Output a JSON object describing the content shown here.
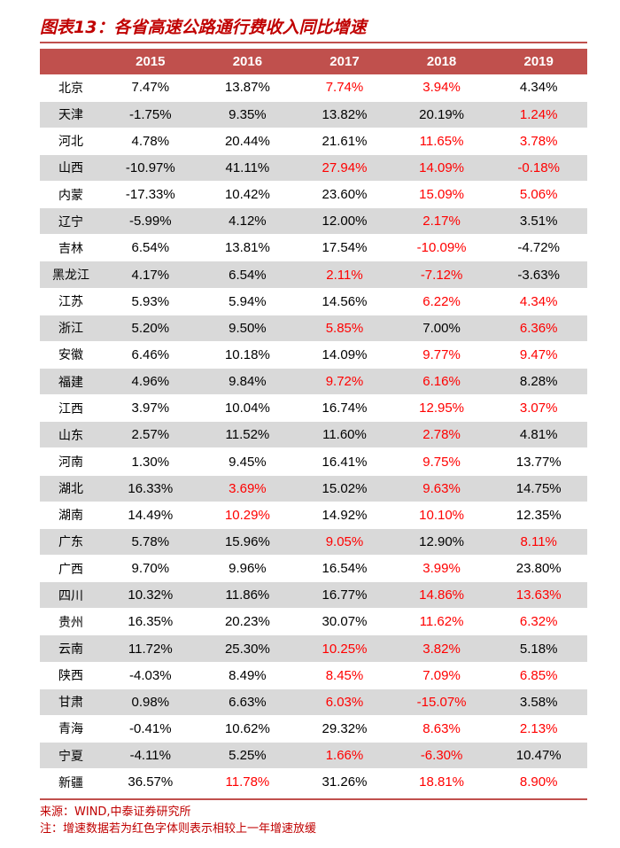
{
  "title": "图表13：各省高速公路通行费收入同比增速",
  "header": [
    "",
    "2015",
    "2016",
    "2017",
    "2018",
    "2019"
  ],
  "rows": [
    {
      "province": "北京",
      "values": [
        "7.47%",
        "13.87%",
        "7.74%",
        "3.94%",
        "4.34%"
      ],
      "red": [
        false,
        false,
        true,
        true,
        false
      ]
    },
    {
      "province": "天津",
      "values": [
        "-1.75%",
        "9.35%",
        "13.82%",
        "20.19%",
        "1.24%"
      ],
      "red": [
        false,
        false,
        false,
        false,
        true
      ]
    },
    {
      "province": "河北",
      "values": [
        "4.78%",
        "20.44%",
        "21.61%",
        "11.65%",
        "3.78%"
      ],
      "red": [
        false,
        false,
        false,
        true,
        true
      ]
    },
    {
      "province": "山西",
      "values": [
        "-10.97%",
        "41.11%",
        "27.94%",
        "14.09%",
        "-0.18%"
      ],
      "red": [
        false,
        false,
        true,
        true,
        true
      ]
    },
    {
      "province": "内蒙",
      "values": [
        "-17.33%",
        "10.42%",
        "23.60%",
        "15.09%",
        "5.06%"
      ],
      "red": [
        false,
        false,
        false,
        true,
        true
      ]
    },
    {
      "province": "辽宁",
      "values": [
        "-5.99%",
        "4.12%",
        "12.00%",
        "2.17%",
        "3.51%"
      ],
      "red": [
        false,
        false,
        false,
        true,
        false
      ]
    },
    {
      "province": "吉林",
      "values": [
        "6.54%",
        "13.81%",
        "17.54%",
        "-10.09%",
        "-4.72%"
      ],
      "red": [
        false,
        false,
        false,
        true,
        false
      ]
    },
    {
      "province": "黑龙江",
      "values": [
        "4.17%",
        "6.54%",
        "2.11%",
        "-7.12%",
        "-3.63%"
      ],
      "red": [
        false,
        false,
        true,
        true,
        false
      ]
    },
    {
      "province": "江苏",
      "values": [
        "5.93%",
        "5.94%",
        "14.56%",
        "6.22%",
        "4.34%"
      ],
      "red": [
        false,
        false,
        false,
        true,
        true
      ]
    },
    {
      "province": "浙江",
      "values": [
        "5.20%",
        "9.50%",
        "5.85%",
        "7.00%",
        "6.36%"
      ],
      "red": [
        false,
        false,
        true,
        false,
        true
      ]
    },
    {
      "province": "安徽",
      "values": [
        "6.46%",
        "10.18%",
        "14.09%",
        "9.77%",
        "9.47%"
      ],
      "red": [
        false,
        false,
        false,
        true,
        true
      ]
    },
    {
      "province": "福建",
      "values": [
        "4.96%",
        "9.84%",
        "9.72%",
        "6.16%",
        "8.28%"
      ],
      "red": [
        false,
        false,
        true,
        true,
        false
      ]
    },
    {
      "province": "江西",
      "values": [
        "3.97%",
        "10.04%",
        "16.74%",
        "12.95%",
        "3.07%"
      ],
      "red": [
        false,
        false,
        false,
        true,
        true
      ]
    },
    {
      "province": "山东",
      "values": [
        "2.57%",
        "11.52%",
        "11.60%",
        "2.78%",
        "4.81%"
      ],
      "red": [
        false,
        false,
        false,
        true,
        false
      ]
    },
    {
      "province": "河南",
      "values": [
        "1.30%",
        "9.45%",
        "16.41%",
        "9.75%",
        "13.77%"
      ],
      "red": [
        false,
        false,
        false,
        true,
        false
      ]
    },
    {
      "province": "湖北",
      "values": [
        "16.33%",
        "3.69%",
        "15.02%",
        "9.63%",
        "14.75%"
      ],
      "red": [
        false,
        true,
        false,
        true,
        false
      ]
    },
    {
      "province": "湖南",
      "values": [
        "14.49%",
        "10.29%",
        "14.92%",
        "10.10%",
        "12.35%"
      ],
      "red": [
        false,
        true,
        false,
        true,
        false
      ]
    },
    {
      "province": "广东",
      "values": [
        "5.78%",
        "15.96%",
        "9.05%",
        "12.90%",
        "8.11%"
      ],
      "red": [
        false,
        false,
        true,
        false,
        true
      ]
    },
    {
      "province": "广西",
      "values": [
        "9.70%",
        "9.96%",
        "16.54%",
        "3.99%",
        "23.80%"
      ],
      "red": [
        false,
        false,
        false,
        true,
        false
      ]
    },
    {
      "province": "四川",
      "values": [
        "10.32%",
        "11.86%",
        "16.77%",
        "14.86%",
        "13.63%"
      ],
      "red": [
        false,
        false,
        false,
        true,
        true
      ]
    },
    {
      "province": "贵州",
      "values": [
        "16.35%",
        "20.23%",
        "30.07%",
        "11.62%",
        "6.32%"
      ],
      "red": [
        false,
        false,
        false,
        true,
        true
      ]
    },
    {
      "province": "云南",
      "values": [
        "11.72%",
        "25.30%",
        "10.25%",
        "3.82%",
        "5.18%"
      ],
      "red": [
        false,
        false,
        true,
        true,
        false
      ]
    },
    {
      "province": "陕西",
      "values": [
        "-4.03%",
        "8.49%",
        "8.45%",
        "7.09%",
        "6.85%"
      ],
      "red": [
        false,
        false,
        true,
        true,
        true
      ]
    },
    {
      "province": "甘肃",
      "values": [
        "0.98%",
        "6.63%",
        "6.03%",
        "-15.07%",
        "3.58%"
      ],
      "red": [
        false,
        false,
        true,
        true,
        false
      ]
    },
    {
      "province": "青海",
      "values": [
        "-0.41%",
        "10.62%",
        "29.32%",
        "8.63%",
        "2.13%"
      ],
      "red": [
        false,
        false,
        false,
        true,
        true
      ]
    },
    {
      "province": "宁夏",
      "values": [
        "-4.11%",
        "5.25%",
        "1.66%",
        "-6.30%",
        "10.47%"
      ],
      "red": [
        false,
        false,
        true,
        true,
        false
      ]
    },
    {
      "province": "新疆",
      "values": [
        "36.57%",
        "11.78%",
        "31.26%",
        "18.81%",
        "8.90%"
      ],
      "red": [
        false,
        true,
        false,
        true,
        true
      ]
    }
  ],
  "source": "来源：WIND,中泰证券研究所",
  "remark": "注：增速数据若为红色字体则表示相较上一年增速放缓",
  "colors": {
    "accent": "#c0504d",
    "red_text": "#ff0000",
    "title_text": "#c00000",
    "stripe": "#d9d9d9"
  }
}
